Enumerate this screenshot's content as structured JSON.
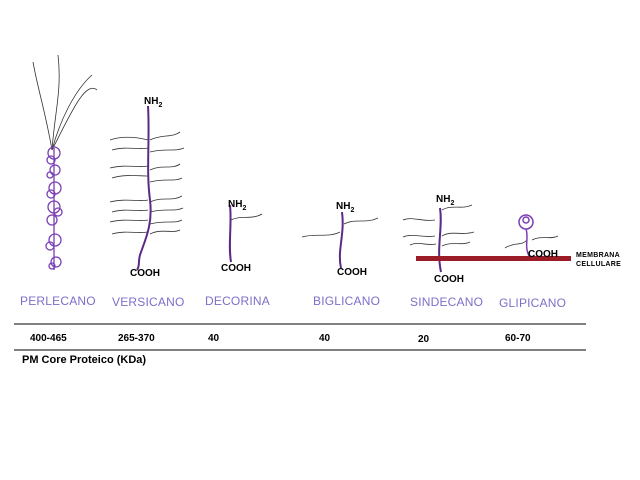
{
  "proteoglycans": [
    {
      "name": "PERLECANO",
      "mass": "400-465"
    },
    {
      "name": "VERSICANO",
      "mass": "265-370"
    },
    {
      "name": "DECORINA",
      "mass": "40"
    },
    {
      "name": "BIGLICANO",
      "mass": "40"
    },
    {
      "name": "SINDECANO",
      "mass": "20"
    },
    {
      "name": "GLIPICANO",
      "mass": "60-70"
    }
  ],
  "terminals": {
    "nh2_main": "NH",
    "nh2_sub": "2",
    "cooh": "COOH"
  },
  "membrane": {
    "line1": "MEMBRANA",
    "line2": "CELLULARE"
  },
  "footer": "PM Core Proteico (KDa)",
  "colors": {
    "core": "#5b2a86",
    "chains": "#333333",
    "membrane": "#9b1b26",
    "names": "#7c6fc8"
  }
}
